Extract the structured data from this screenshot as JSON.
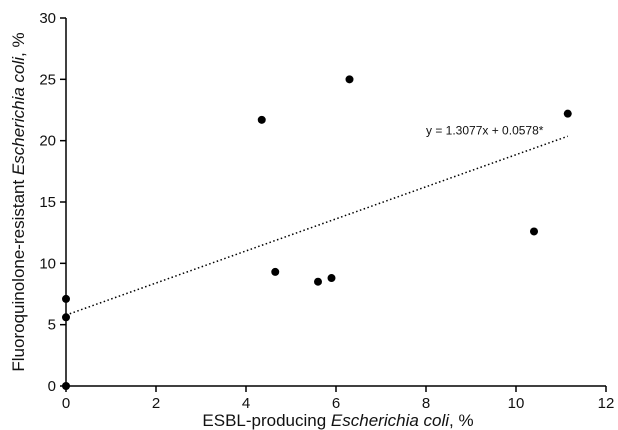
{
  "chart_data": {
    "type": "scatter",
    "xlim": [
      0,
      12
    ],
    "ylim": [
      0,
      30
    ],
    "x_ticks": [
      0,
      2,
      4,
      6,
      8,
      10,
      12
    ],
    "y_ticks": [
      0,
      5,
      10,
      15,
      20,
      25,
      30
    ],
    "grid": false,
    "xlabel": {
      "prefix": "ESBL-producing ",
      "italic": "Escherichia coli",
      "suffix": ", %"
    },
    "ylabel": {
      "prefix": "Fluoroquinolone-resistant ",
      "italic": "Escherichia coli",
      "suffix": ", %"
    },
    "points": [
      {
        "x": 0,
        "y": 0
      },
      {
        "x": 0,
        "y": 5.6
      },
      {
        "x": 0,
        "y": 7.1
      },
      {
        "x": 4.35,
        "y": 21.7
      },
      {
        "x": 4.65,
        "y": 9.3
      },
      {
        "x": 5.6,
        "y": 8.5
      },
      {
        "x": 5.9,
        "y": 8.8
      },
      {
        "x": 6.3,
        "y": 25.0
      },
      {
        "x": 10.4,
        "y": 12.6
      },
      {
        "x": 11.15,
        "y": 22.2
      }
    ],
    "trendline": {
      "slope": 1.3077,
      "intercept": 5.78,
      "x_range": [
        0,
        11.15
      ],
      "style": "dotted"
    },
    "annotation": "y = 1.3077x + 0.0578*",
    "point_color": "#000000"
  }
}
